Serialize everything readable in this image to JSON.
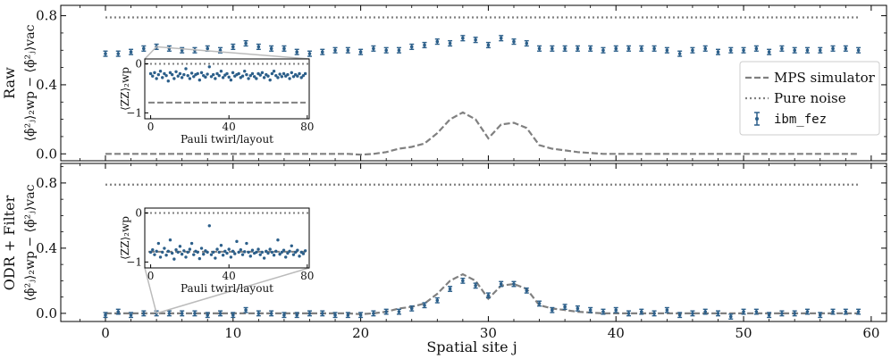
{
  "chart_data": {
    "type": "scatter",
    "xlabel": "Spatial site j",
    "x_ticks": [
      0,
      10,
      20,
      30,
      40,
      50,
      60
    ],
    "xlim": [
      -3.5,
      61.2
    ],
    "y_ticks": [
      0.0,
      0.4,
      0.8
    ],
    "y_tick_labels": [
      "0.0",
      "0.4",
      "0.8"
    ],
    "legend": {
      "position": "center-right",
      "entries": [
        "MPS simulator",
        "Pure noise",
        "ibm_fez"
      ]
    },
    "mps_simulator": {
      "x": [
        0,
        1,
        2,
        3,
        4,
        5,
        6,
        7,
        8,
        9,
        10,
        11,
        12,
        13,
        14,
        15,
        16,
        17,
        18,
        19,
        20,
        21,
        22,
        23,
        24,
        25,
        26,
        27,
        28,
        29,
        30,
        31,
        32,
        33,
        34,
        35,
        36,
        37,
        38,
        39,
        40,
        41,
        42,
        43,
        44,
        45,
        46,
        47,
        48,
        49,
        50,
        51,
        52,
        53,
        54,
        55,
        56,
        57,
        58,
        59
      ],
      "y": [
        0,
        0,
        0,
        0,
        0,
        0,
        0,
        0,
        0,
        0,
        0,
        0,
        0,
        0,
        0,
        0,
        0,
        0,
        0,
        0,
        -0.005,
        0,
        0.01,
        0.03,
        0.04,
        0.06,
        0.12,
        0.2,
        0.24,
        0.2,
        0.09,
        0.17,
        0.18,
        0.15,
        0.05,
        0.03,
        0.02,
        0.01,
        0.005,
        0,
        0,
        0,
        0,
        0,
        0,
        0,
        0,
        0,
        0,
        0,
        0,
        0,
        0,
        0,
        0,
        0,
        0,
        0,
        0,
        0
      ]
    },
    "panels": [
      {
        "id": "raw",
        "ylabel_title": "Raw",
        "ylabel_formula": "⟨ϕ̂²ⱼ⟩₂wp − ⟨ϕ̂²ⱼ⟩vac",
        "ylim": [
          -0.04,
          0.86
        ],
        "pure_noise_level": 0.79,
        "ibm_fez": {
          "x": [
            0,
            1,
            2,
            3,
            4,
            5,
            6,
            7,
            8,
            9,
            10,
            11,
            12,
            13,
            14,
            15,
            16,
            17,
            18,
            19,
            20,
            21,
            22,
            23,
            24,
            25,
            26,
            27,
            28,
            29,
            30,
            31,
            32,
            33,
            34,
            35,
            36,
            37,
            38,
            39,
            40,
            41,
            42,
            43,
            44,
            45,
            46,
            47,
            48,
            49,
            50,
            51,
            52,
            53,
            54,
            55,
            56,
            57,
            58,
            59
          ],
          "y": [
            0.58,
            0.58,
            0.59,
            0.61,
            0.62,
            0.61,
            0.6,
            0.6,
            0.61,
            0.6,
            0.62,
            0.64,
            0.62,
            0.61,
            0.61,
            0.59,
            0.58,
            0.59,
            0.6,
            0.6,
            0.59,
            0.61,
            0.6,
            0.6,
            0.62,
            0.63,
            0.65,
            0.64,
            0.67,
            0.66,
            0.63,
            0.67,
            0.65,
            0.64,
            0.61,
            0.61,
            0.61,
            0.61,
            0.61,
            0.6,
            0.61,
            0.61,
            0.61,
            0.61,
            0.6,
            0.58,
            0.6,
            0.61,
            0.59,
            0.6,
            0.6,
            0.61,
            0.59,
            0.61,
            0.6,
            0.6,
            0.6,
            0.61,
            0.61,
            0.6
          ],
          "err": [
            0.015,
            0.015,
            0.015,
            0.015,
            0.015,
            0.015,
            0.015,
            0.015,
            0.015,
            0.015,
            0.015,
            0.015,
            0.015,
            0.015,
            0.015,
            0.015,
            0.015,
            0.015,
            0.015,
            0.015,
            0.015,
            0.015,
            0.015,
            0.015,
            0.015,
            0.015,
            0.015,
            0.015,
            0.015,
            0.015,
            0.015,
            0.015,
            0.015,
            0.015,
            0.015,
            0.015,
            0.015,
            0.015,
            0.015,
            0.015,
            0.015,
            0.015,
            0.015,
            0.015,
            0.015,
            0.015,
            0.015,
            0.015,
            0.015,
            0.015,
            0.015,
            0.015,
            0.015,
            0.015,
            0.015,
            0.015,
            0.015,
            0.015,
            0.015,
            0.015
          ]
        },
        "inset": {
          "highlight_site": 4,
          "xlabel": "Pauli twirl/layout",
          "ylabel": "⟨ZZ⟩₂wp",
          "xlim": [
            -3,
            81
          ],
          "ylim": [
            -1.12,
            0.1
          ],
          "x_ticks": [
            0,
            40,
            80
          ],
          "y_ticks": [
            0,
            -1
          ],
          "y_tick_labels": [
            "0",
            "−1"
          ],
          "pure_noise": 0.0,
          "mps": -0.79,
          "points": [
            -0.2,
            -0.25,
            -0.18,
            -0.3,
            -0.22,
            -0.15,
            -0.28,
            -0.2,
            -0.24,
            -0.35,
            -0.18,
            -0.22,
            -0.3,
            -0.16,
            -0.25,
            -0.2,
            -0.28,
            -0.22,
            -0.1,
            -0.24,
            -0.3,
            -0.19,
            -0.26,
            -0.22,
            -0.2,
            -0.33,
            -0.18,
            -0.24,
            -0.27,
            -0.21,
            -0.06,
            -0.26,
            -0.22,
            -0.3,
            -0.2,
            -0.24,
            -0.15,
            -0.28,
            -0.23,
            -0.2,
            -0.27,
            -0.33,
            -0.18,
            -0.25,
            -0.22,
            -0.2,
            -0.28,
            -0.25,
            -0.15,
            -0.22,
            -0.3,
            -0.24,
            -0.2,
            -0.26,
            -0.3,
            -0.2,
            -0.23,
            -0.18,
            -0.28,
            -0.22,
            -0.25,
            -0.33,
            -0.2,
            -0.15,
            -0.24,
            -0.28,
            -0.21,
            -0.26,
            -0.2,
            -0.25,
            -0.22,
            -0.3,
            -0.18,
            -0.26,
            -0.22,
            -0.25,
            -0.2,
            -0.28,
            -0.24,
            -0.2
          ]
        }
      },
      {
        "id": "odr_filter",
        "ylabel_title": "ODR + Filter",
        "ylabel_formula": "⟨ϕ̂²ⱼ⟩₂wp − ⟨ϕ̂²ⱼ⟩vac",
        "ylim": [
          -0.05,
          0.92
        ],
        "pure_noise_level": 0.79,
        "ibm_fez": {
          "x": [
            0,
            1,
            2,
            3,
            4,
            5,
            6,
            7,
            8,
            9,
            10,
            11,
            12,
            13,
            14,
            15,
            16,
            17,
            18,
            19,
            20,
            21,
            22,
            23,
            24,
            25,
            26,
            27,
            28,
            29,
            30,
            31,
            32,
            33,
            34,
            35,
            36,
            37,
            38,
            39,
            40,
            41,
            42,
            43,
            44,
            45,
            46,
            47,
            48,
            49,
            50,
            51,
            52,
            53,
            54,
            55,
            56,
            57,
            58,
            59
          ],
          "y": [
            -0.01,
            0.01,
            -0.01,
            0.0,
            0.0,
            0.0,
            0.0,
            0.0,
            -0.01,
            0.0,
            -0.01,
            0.02,
            0.0,
            0.0,
            -0.01,
            -0.01,
            0.0,
            0.0,
            -0.01,
            -0.01,
            -0.01,
            0.0,
            0.01,
            0.01,
            0.03,
            0.05,
            0.08,
            0.15,
            0.2,
            0.17,
            0.11,
            0.18,
            0.18,
            0.14,
            0.06,
            0.02,
            0.04,
            0.03,
            0.02,
            0.01,
            0.02,
            0.0,
            0.01,
            0.0,
            0.02,
            -0.01,
            0.0,
            0.01,
            0.0,
            -0.02,
            0.01,
            0.01,
            -0.01,
            0.0,
            0.0,
            0.01,
            -0.01,
            0.01,
            0.01,
            0.01
          ],
          "err": [
            0.015,
            0.015,
            0.015,
            0.015,
            0.015,
            0.015,
            0.015,
            0.015,
            0.015,
            0.015,
            0.015,
            0.015,
            0.015,
            0.015,
            0.015,
            0.015,
            0.015,
            0.015,
            0.015,
            0.015,
            0.015,
            0.015,
            0.015,
            0.015,
            0.015,
            0.015,
            0.015,
            0.015,
            0.015,
            0.015,
            0.015,
            0.015,
            0.015,
            0.015,
            0.015,
            0.015,
            0.015,
            0.015,
            0.015,
            0.015,
            0.015,
            0.015,
            0.015,
            0.015,
            0.015,
            0.015,
            0.015,
            0.015,
            0.015,
            0.015,
            0.015,
            0.015,
            0.015,
            0.015,
            0.015,
            0.015,
            0.015,
            0.015,
            0.015,
            0.015
          ]
        },
        "inset": {
          "highlight_site": 4,
          "xlabel": "Pauli twirl/layout",
          "ylabel": "⟨ZZ⟩₂wp",
          "xlim": [
            -3,
            81
          ],
          "ylim": [
            -1.12,
            0.1
          ],
          "x_ticks": [
            0,
            40,
            80
          ],
          "y_ticks": [
            0,
            -1
          ],
          "y_tick_labels": [
            "0",
            "−1"
          ],
          "pure_noise": 0.0,
          "mps": -0.79,
          "points": [
            -0.8,
            -0.75,
            -0.85,
            -0.78,
            -0.62,
            -0.9,
            -0.8,
            -0.72,
            -0.86,
            -0.78,
            -0.55,
            -0.82,
            -0.94,
            -0.75,
            -0.8,
            -0.68,
            -0.84,
            -0.77,
            -0.9,
            -0.8,
            -0.74,
            -0.62,
            -0.85,
            -0.78,
            -0.8,
            -0.93,
            -0.72,
            -0.84,
            -0.77,
            -0.8,
            -0.26,
            -0.85,
            -0.8,
            -0.92,
            -0.74,
            -0.8,
            -0.66,
            -0.86,
            -0.78,
            -0.82,
            -0.74,
            -0.9,
            -0.78,
            -0.83,
            -0.58,
            -0.8,
            -0.75,
            -0.85,
            -0.79,
            -0.62,
            -0.8,
            -0.88,
            -0.76,
            -0.82,
            -0.8,
            -0.74,
            -0.85,
            -0.8,
            -0.92,
            -0.78,
            -0.82,
            -0.74,
            -0.8,
            -0.86,
            -0.78,
            -0.55,
            -0.84,
            -0.8,
            -0.76,
            -0.9,
            -0.82,
            -0.78,
            -0.67,
            -0.85,
            -0.8,
            -0.76,
            -0.88,
            -0.8,
            -0.83,
            -0.77
          ]
        }
      }
    ]
  }
}
